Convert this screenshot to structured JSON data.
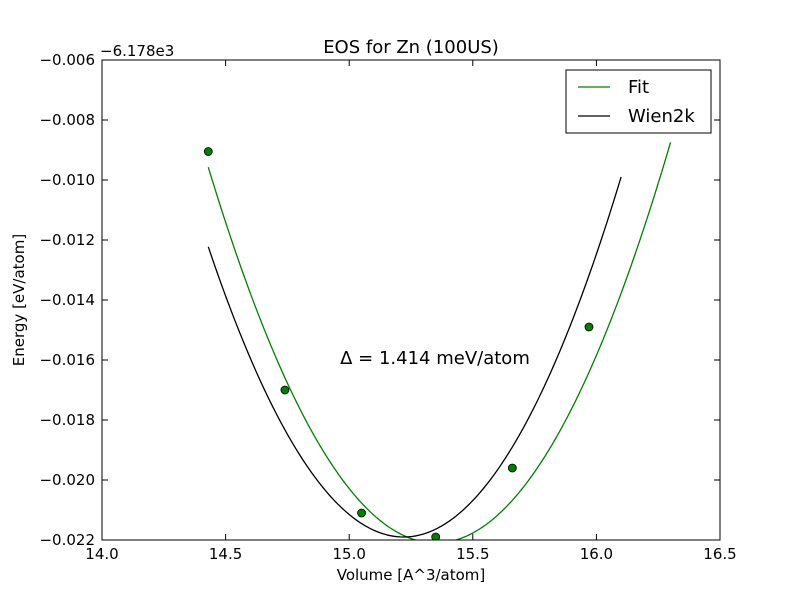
{
  "chart_data": {
    "type": "line",
    "title": "EOS for Zn (100US)",
    "xlabel": "Volume [A^3/atom]",
    "ylabel": "Energy [eV/atom]",
    "offset_label": "−6.178e3",
    "xlim": [
      14.0,
      16.5
    ],
    "ylim": [
      -0.022,
      -0.006
    ],
    "x_ticks": [
      14.0,
      14.5,
      15.0,
      15.5,
      16.0,
      16.5
    ],
    "x_tick_labels": [
      "14.0",
      "14.5",
      "15.0",
      "15.5",
      "16.0",
      "16.5"
    ],
    "y_ticks": [
      -0.022,
      -0.02,
      -0.018,
      -0.016,
      -0.014,
      -0.012,
      -0.01,
      -0.008,
      -0.006
    ],
    "y_tick_labels": [
      "−0.022",
      "−0.020",
      "−0.018",
      "−0.016",
      "−0.014",
      "−0.012",
      "−0.010",
      "−0.008",
      "−0.006"
    ],
    "annotation": "Δ = 1.414 meV/atom",
    "legend_position": "top-right",
    "grid": false,
    "series": [
      {
        "name": "Fit",
        "color": "#008000",
        "style": "line",
        "curve": {
          "vmin": 15.35,
          "emin": -0.0221,
          "curvature": 0.0148,
          "x_range": [
            14.43,
            16.3
          ]
        }
      },
      {
        "name": "Wien2k",
        "color": "#000000",
        "style": "line",
        "curve": {
          "vmin": 15.22,
          "emin": -0.0219,
          "curvature": 0.0155,
          "x_range": [
            14.43,
            16.1
          ]
        }
      },
      {
        "name": "",
        "color": "#008000",
        "style": "markers",
        "points": [
          {
            "x": 14.43,
            "y": -0.00905
          },
          {
            "x": 14.74,
            "y": -0.017
          },
          {
            "x": 15.05,
            "y": -0.0211
          },
          {
            "x": 15.35,
            "y": -0.0219
          },
          {
            "x": 15.66,
            "y": -0.0196
          },
          {
            "x": 15.97,
            "y": -0.0149
          }
        ]
      }
    ]
  }
}
